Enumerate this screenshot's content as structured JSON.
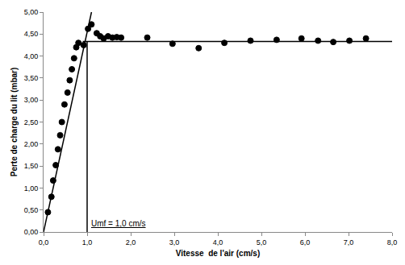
{
  "chart_data": {
    "type": "scatter",
    "x_label": "Vitesse  de l'air (cm/s)",
    "y_label": "Perte de charge du lit (mbar)",
    "xlim": [
      0,
      8
    ],
    "ylim": [
      0,
      5
    ],
    "xticks": [
      {
        "value": 0,
        "label": "0,0"
      },
      {
        "value": 1,
        "label": "1,0"
      },
      {
        "value": 2,
        "label": "2,0"
      },
      {
        "value": 3,
        "label": "3,0"
      },
      {
        "value": 4,
        "label": "4,0"
      },
      {
        "value": 5,
        "label": "5,0"
      },
      {
        "value": 6,
        "label": "6,0"
      },
      {
        "value": 7,
        "label": "7,0"
      },
      {
        "value": 8,
        "label": "8,0"
      }
    ],
    "yticks": [
      {
        "value": 0,
        "label": "0,00"
      },
      {
        "value": 0.5,
        "label": "0,50"
      },
      {
        "value": 1,
        "label": "1,00"
      },
      {
        "value": 1.5,
        "label": "1,50"
      },
      {
        "value": 2,
        "label": "2,00"
      },
      {
        "value": 2.5,
        "label": "2,50"
      },
      {
        "value": 3,
        "label": "3,00"
      },
      {
        "value": 3.5,
        "label": "3,50"
      },
      {
        "value": 4,
        "label": "4,00"
      },
      {
        "value": 4.5,
        "label": "4,50"
      },
      {
        "value": 5,
        "label": "5,00"
      }
    ],
    "grid": false,
    "series": [
      {
        "type": "scatter",
        "marker": "triangle-open",
        "color": "#000000",
        "x": [
          0.1,
          0.18,
          0.22,
          0.28,
          0.33,
          0.38,
          0.42,
          0.48,
          0.55,
          0.6,
          0.65,
          0.7,
          0.75,
          0.8,
          0.92,
          1.02,
          1.1,
          1.22,
          1.3,
          1.38,
          1.48,
          1.58,
          1.68,
          1.78,
          2.38,
          2.96,
          3.56,
          4.15,
          4.75,
          5.35,
          5.92,
          6.3,
          6.65,
          7.02,
          7.4
        ],
        "values": [
          0.45,
          0.8,
          1.17,
          1.52,
          1.88,
          2.2,
          2.5,
          2.9,
          3.17,
          3.45,
          3.7,
          3.95,
          4.2,
          4.3,
          4.25,
          4.62,
          4.72,
          4.52,
          4.45,
          4.4,
          4.45,
          4.42,
          4.43,
          4.42,
          4.42,
          4.28,
          4.18,
          4.3,
          4.35,
          4.37,
          4.4,
          4.35,
          4.32,
          4.35,
          4.4
        ]
      },
      {
        "type": "line",
        "line_style": "solid",
        "color": "#000000",
        "x": [
          0,
          1.1
        ],
        "values": [
          0,
          5.0
        ]
      },
      {
        "type": "line",
        "line_style": "solid",
        "color": "#000000",
        "x": [
          0.9,
          8
        ],
        "values": [
          4.33,
          4.33
        ]
      },
      {
        "type": "line",
        "line_style": "solid",
        "color": "#000000",
        "x": [
          1.0,
          1.0
        ],
        "values": [
          0,
          4.33
        ]
      }
    ],
    "annotations": [
      {
        "text": "Umf = 1,0 cm/s",
        "x": 1.0,
        "y": 0.2
      }
    ]
  }
}
